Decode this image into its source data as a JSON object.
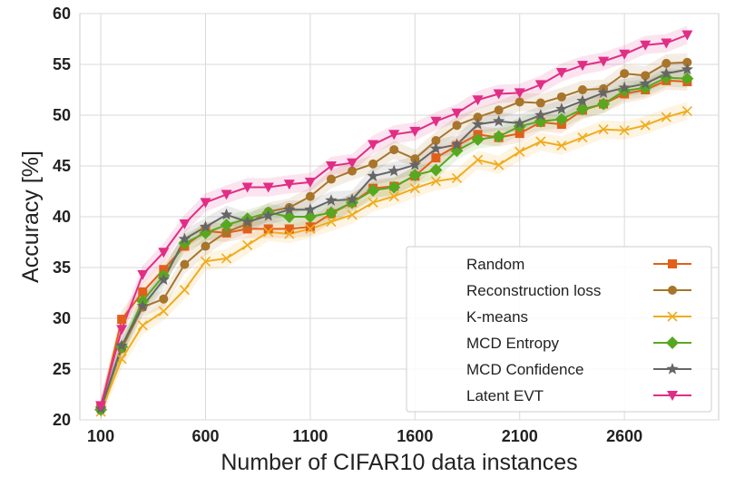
{
  "chart_data": {
    "type": "line",
    "xlabel": "Number of CIFAR10 data instances",
    "ylabel": "Accuracy [%]",
    "xlim": [
      0,
      3050
    ],
    "ylim": [
      20,
      60
    ],
    "xticks": [
      100,
      600,
      1100,
      1600,
      2100,
      2600
    ],
    "yticks": [
      20,
      25,
      30,
      35,
      40,
      45,
      50,
      55,
      60
    ],
    "grid": true,
    "legend_position": "bottom-right",
    "x": [
      100,
      200,
      300,
      400,
      500,
      600,
      700,
      800,
      900,
      1000,
      1100,
      1200,
      1300,
      1400,
      1500,
      1600,
      1700,
      1800,
      1900,
      2000,
      2100,
      2200,
      2300,
      2400,
      2500,
      2600,
      2700,
      2800,
      2900
    ],
    "series": [
      {
        "name": "Random",
        "color": "#e0601b",
        "marker": "square",
        "values": [
          21.2,
          29.9,
          32.6,
          34.8,
          37.1,
          38.6,
          38.4,
          38.8,
          38.8,
          38.8,
          39.0,
          40.3,
          41.4,
          42.8,
          43.0,
          44.0,
          45.8,
          47.0,
          48.1,
          47.8,
          48.2,
          49.3,
          49.1,
          50.5,
          51.1,
          52.1,
          52.5,
          53.4,
          53.3
        ]
      },
      {
        "name": "Reconstruction loss",
        "color": "#a8752a",
        "marker": "circle",
        "values": [
          21.0,
          27.0,
          31.1,
          31.9,
          35.3,
          37.1,
          38.5,
          39.3,
          40.5,
          40.9,
          42.0,
          43.7,
          44.5,
          45.2,
          46.6,
          45.7,
          47.5,
          49.0,
          49.8,
          50.5,
          51.3,
          51.2,
          51.8,
          52.5,
          52.6,
          54.1,
          53.9,
          55.1,
          55.2
        ]
      },
      {
        "name": "K-means",
        "color": "#f0ac1e",
        "marker": "x",
        "values": [
          20.8,
          26.0,
          29.3,
          30.7,
          32.8,
          35.6,
          35.9,
          37.2,
          38.5,
          38.3,
          38.8,
          39.5,
          40.2,
          41.4,
          42.0,
          42.8,
          43.5,
          43.8,
          45.6,
          45.1,
          46.4,
          47.4,
          47.0,
          47.8,
          48.6,
          48.5,
          49.0,
          49.8,
          50.4
        ]
      },
      {
        "name": "MCD Entropy",
        "color": "#57a820",
        "marker": "diamond",
        "values": [
          21.0,
          27.2,
          31.7,
          34.2,
          37.4,
          38.4,
          39.2,
          39.8,
          40.4,
          40.0,
          40.0,
          40.4,
          41.4,
          42.6,
          42.9,
          44.1,
          44.6,
          46.5,
          47.6,
          47.9,
          48.9,
          49.4,
          49.6,
          50.6,
          51.1,
          52.4,
          52.7,
          53.7,
          53.6
        ]
      },
      {
        "name": "MCD Confidence",
        "color": "#666666",
        "marker": "star",
        "values": [
          21.1,
          27.3,
          31.2,
          33.8,
          37.8,
          39.0,
          40.2,
          39.5,
          40.1,
          40.7,
          40.7,
          41.6,
          41.7,
          44.0,
          44.5,
          45.1,
          46.7,
          47.1,
          49.1,
          49.4,
          49.2,
          50.0,
          50.6,
          51.4,
          52.2,
          52.7,
          53.1,
          54.1,
          54.5
        ]
      },
      {
        "name": "Latent EVT",
        "color": "#e22d86",
        "marker": "triangle-down",
        "values": [
          21.4,
          28.9,
          34.3,
          36.5,
          39.3,
          41.4,
          42.2,
          42.9,
          42.9,
          43.2,
          43.4,
          45.0,
          45.3,
          47.1,
          48.1,
          48.4,
          49.4,
          50.2,
          51.5,
          52.1,
          52.2,
          53.0,
          54.2,
          54.9,
          55.3,
          56.0,
          56.9,
          57.1,
          57.9
        ]
      }
    ]
  }
}
